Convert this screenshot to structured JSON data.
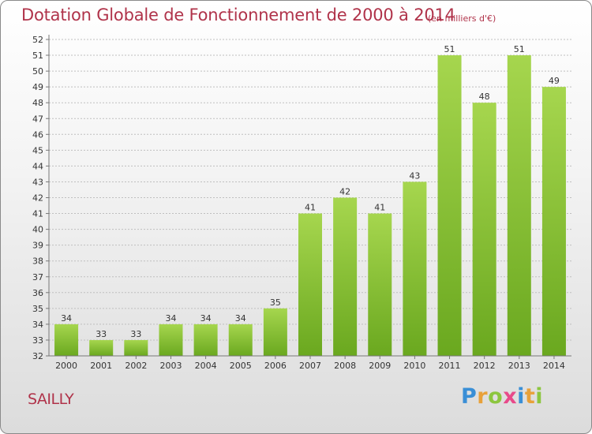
{
  "title": "Dotation Globale de Fonctionnement de 2000 à 2014",
  "unit_note": "(en milliers d'€)",
  "commune": "SAILLY",
  "logo": {
    "letters": [
      "P",
      "r",
      "o",
      "x",
      "i",
      "t",
      "i"
    ],
    "colors": [
      "#3a8fd6",
      "#e8a13a",
      "#8cc63f",
      "#e84a8a",
      "#3a8fd6",
      "#e8a13a",
      "#8cc63f"
    ]
  },
  "colors": {
    "bar_light": "#a6d64e",
    "bar_dark": "#6aa81f",
    "title": "#b0334a",
    "grid": "#bfbfbf"
  },
  "chart_data": {
    "type": "bar",
    "categories": [
      "2000",
      "2001",
      "2002",
      "2003",
      "2004",
      "2005",
      "2006",
      "2007",
      "2008",
      "2009",
      "2010",
      "2011",
      "2012",
      "2013",
      "2014"
    ],
    "values": [
      34,
      33,
      33,
      34,
      34,
      34,
      35,
      41,
      42,
      41,
      43,
      51,
      48,
      51,
      49
    ],
    "title": "Dotation Globale de Fonctionnement de 2000 à 2014",
    "xlabel": "",
    "ylabel": "",
    "ylim": [
      32,
      52
    ],
    "yticks": [
      32,
      33,
      34,
      35,
      36,
      37,
      38,
      39,
      40,
      41,
      42,
      43,
      44,
      45,
      46,
      47,
      48,
      49,
      50,
      51,
      52
    ],
    "grid": true,
    "data_labels": true
  }
}
